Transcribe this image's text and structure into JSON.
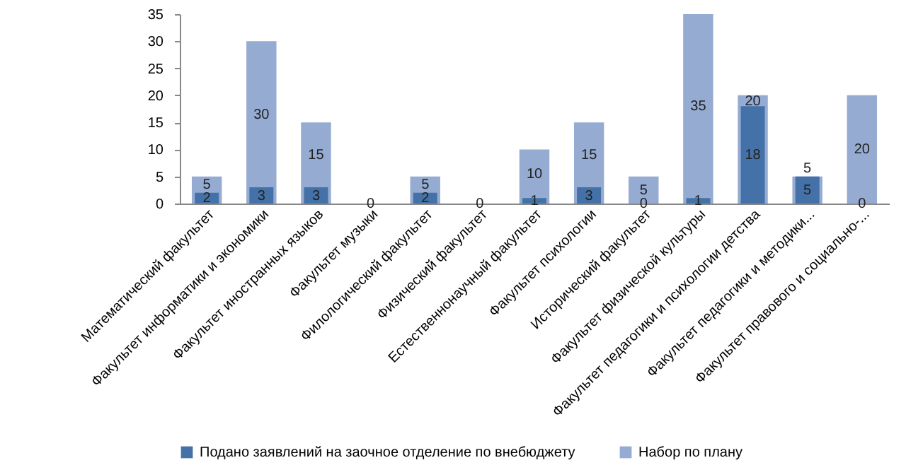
{
  "chart_data": {
    "type": "bar",
    "categories": [
      "Математический факультет",
      "Факультет информатики и экономики",
      "Факультет иностранных языков",
      "Факультет музыки",
      "Филологический факультет",
      "Физический факультет",
      "Естественнонаучный факультет",
      "Факультет психологии",
      "Исторический факультет",
      "Факультет физической культуры",
      "Факультет педагогики и психологии детства",
      "Факультет педагогики и методики...",
      "Факультет правового и социально-..."
    ],
    "series": [
      {
        "name": "Подано заявлений на заочное отделение по внебюджету",
        "color": "#4472a8",
        "values": [
          2,
          3,
          3,
          0,
          2,
          0,
          1,
          3,
          0,
          1,
          18,
          5,
          0
        ],
        "value_labels": [
          "2",
          "3",
          "3",
          null,
          "2",
          null,
          "1",
          "3",
          "0",
          "1",
          "18",
          "5",
          "0"
        ]
      },
      {
        "name": "Набор по плану",
        "color": "#95abd2",
        "values": [
          5,
          30,
          15,
          0,
          5,
          0,
          10,
          15,
          5,
          35,
          20,
          5,
          20
        ],
        "value_labels": [
          "5",
          "30",
          "15",
          "0",
          "5",
          "0",
          "10",
          "15",
          "5",
          "35",
          "20",
          "5",
          "20"
        ]
      }
    ],
    "ylim": [
      0,
      35
    ],
    "yticks": [
      0,
      5,
      10,
      15,
      20,
      25,
      30,
      35
    ],
    "grid": false,
    "legend": "bottom"
  }
}
